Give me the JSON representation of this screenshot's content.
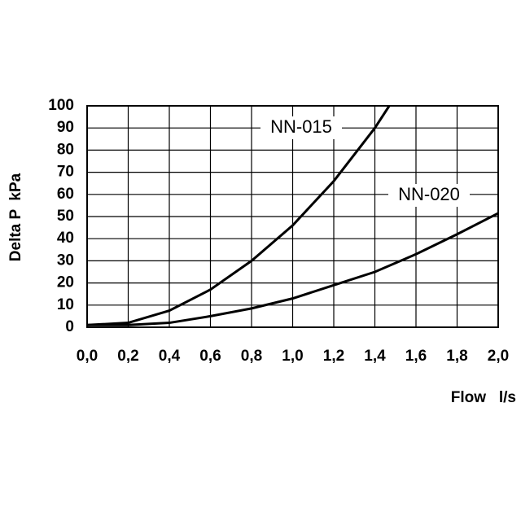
{
  "chart_data": {
    "type": "line",
    "xlabel": "Flow   l/s",
    "ylabel": "Delta P  kPa",
    "series": [
      {
        "name": "NN-015",
        "color": "#000000",
        "x": [
          0,
          0.2,
          0.4,
          0.6,
          0.8,
          1.0,
          1.2,
          1.4,
          1.47
        ],
        "values": [
          1,
          2,
          7.5,
          17,
          30,
          46,
          66,
          90,
          100
        ]
      },
      {
        "name": "NN-020",
        "color": "#000000",
        "x": [
          0,
          0.2,
          0.4,
          0.6,
          0.8,
          1.0,
          1.2,
          1.4,
          1.6,
          1.8,
          2.0
        ],
        "values": [
          1,
          1,
          2,
          5,
          8.5,
          13,
          19,
          25,
          33,
          42,
          51.5
        ]
      }
    ],
    "xlim": [
      0,
      2
    ],
    "ylim": [
      0,
      100
    ],
    "xticks": [
      {
        "value": 0,
        "label": "0,0"
      },
      {
        "value": 0.2,
        "label": "0,2"
      },
      {
        "value": 0.4,
        "label": "0,4"
      },
      {
        "value": 0.6,
        "label": "0,6"
      },
      {
        "value": 0.8,
        "label": "0,8"
      },
      {
        "value": 1.0,
        "label": "1,0"
      },
      {
        "value": 1.2,
        "label": "1,2"
      },
      {
        "value": 1.4,
        "label": "1,4"
      },
      {
        "value": 1.6,
        "label": "1,6"
      },
      {
        "value": 1.8,
        "label": "1,8"
      },
      {
        "value": 2.0,
        "label": "2,0"
      }
    ],
    "yticks": [
      0,
      10,
      20,
      30,
      40,
      50,
      60,
      70,
      80,
      90,
      100
    ],
    "grid": true
  }
}
